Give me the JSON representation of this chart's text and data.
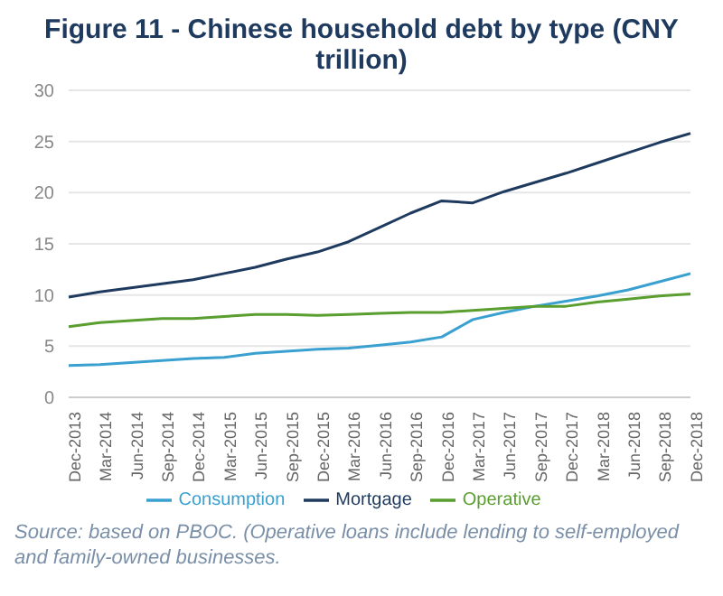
{
  "chart_data": {
    "type": "line",
    "title": "Figure 11 - Chinese household debt by type (CNY trillion)",
    "categories": [
      "Dec-2013",
      "Mar-2014",
      "Jun-2014",
      "Sep-2014",
      "Dec-2014",
      "Mar-2015",
      "Jun-2015",
      "Sep-2015",
      "Dec-2015",
      "Mar-2016",
      "Jun-2016",
      "Sep-2016",
      "Dec-2016",
      "Mar-2017",
      "Jun-2017",
      "Sep-2017",
      "Dec-2017",
      "Mar-2018",
      "Jun-2018",
      "Sep-2018",
      "Dec-2018"
    ],
    "series": [
      {
        "name": "Mortgage",
        "color": "#1f3a5f",
        "values": [
          9.8,
          10.3,
          10.7,
          11.1,
          11.5,
          12.1,
          12.7,
          13.5,
          14.2,
          15.2,
          16.6,
          18.0,
          19.2,
          19.0,
          20.1,
          21.0,
          21.9,
          22.9,
          23.9,
          24.9,
          25.8
        ]
      },
      {
        "name": "Consumption",
        "color": "#3aa0d0",
        "values": [
          3.1,
          3.2,
          3.4,
          3.6,
          3.8,
          3.9,
          4.3,
          4.5,
          4.7,
          4.8,
          5.1,
          5.4,
          5.9,
          7.6,
          8.3,
          8.9,
          9.4,
          9.9,
          10.5,
          11.3,
          12.1
        ]
      },
      {
        "name": "Operative",
        "color": "#5a9e2f",
        "values": [
          6.9,
          7.3,
          7.5,
          7.7,
          7.7,
          7.9,
          8.1,
          8.1,
          8.0,
          8.1,
          8.2,
          8.3,
          8.3,
          8.5,
          8.7,
          8.9,
          8.9,
          9.3,
          9.6,
          9.9,
          10.1
        ]
      }
    ],
    "ylim": [
      0,
      30
    ],
    "yticks": [
      0,
      5,
      10,
      15,
      20,
      25,
      30
    ],
    "grid": "y",
    "legend": "bottom",
    "marker": "none",
    "line_style": "solid",
    "annotations": [
      "Source: based on PBOC. (Operative loans include lending to self-employed and family-owned businesses."
    ]
  }
}
